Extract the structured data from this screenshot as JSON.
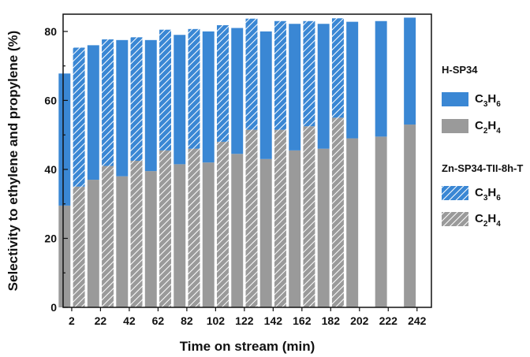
{
  "chart_data": {
    "type": "bar",
    "xlabel": "Time on stream (min)",
    "ylabel": "Selectivity to ethylene and propylene (%)",
    "ylim": [
      0,
      85
    ],
    "yticks": [
      0,
      20,
      40,
      60,
      80
    ],
    "xticks": [
      2,
      22,
      42,
      62,
      82,
      102,
      122,
      142,
      162,
      182,
      202,
      222,
      242
    ],
    "stacked": true,
    "groups": [
      {
        "name": "H-SP34",
        "style": "solid",
        "x": [
          2,
          22,
          42,
          62,
          82,
          102,
          122,
          142,
          162,
          182,
          202,
          222,
          242
        ],
        "series": [
          {
            "name": "C2H4",
            "color": "#9a9a9a",
            "values": [
              29.5,
              37,
              38,
              39.5,
              41.5,
              42,
              44.5,
              43,
              45.5,
              46,
              49,
              49.5,
              53
            ]
          },
          {
            "name": "C3H6",
            "color": "#3a87d4",
            "values": [
              38.3,
              39,
              39.5,
              38,
              37.5,
              38,
              36.5,
              37,
              36.7,
              36.2,
              33.8,
              33.5,
              31
            ]
          }
        ]
      },
      {
        "name": "Zn-SP34-TII-8h-T",
        "style": "hatched",
        "x": [
          2,
          22,
          42,
          62,
          82,
          102,
          122,
          142,
          162,
          182
        ],
        "series": [
          {
            "name": "C2H4",
            "color": "#9a9a9a",
            "values": [
              35,
              41,
              42.5,
              45.5,
              46,
              48,
              51.5,
              51.5,
              52.5,
              55
            ]
          },
          {
            "name": "C3H6",
            "color": "#3a87d4",
            "values": [
              40.3,
              36.7,
              35.8,
              35,
              34.7,
              33.8,
              32.2,
              31.5,
              30.5,
              28.8
            ]
          }
        ]
      }
    ],
    "legend": {
      "position": "right",
      "groups": [
        {
          "title": "H-SP34",
          "items": [
            {
              "main": "C",
              "sub1": "3",
              "mid": "H",
              "sub2": "6",
              "color": "#3a87d4",
              "style": "solid"
            },
            {
              "main": "C",
              "sub1": "2",
              "mid": "H",
              "sub2": "4",
              "color": "#9a9a9a",
              "style": "solid"
            }
          ]
        },
        {
          "title": "Zn-SP34-TII-8h-T",
          "items": [
            {
              "main": "C",
              "sub1": "3",
              "mid": "H",
              "sub2": "6",
              "color": "#3a87d4",
              "style": "hatched"
            },
            {
              "main": "C",
              "sub1": "2",
              "mid": "H",
              "sub2": "4",
              "color": "#9a9a9a",
              "style": "hatched"
            }
          ]
        }
      ]
    }
  }
}
